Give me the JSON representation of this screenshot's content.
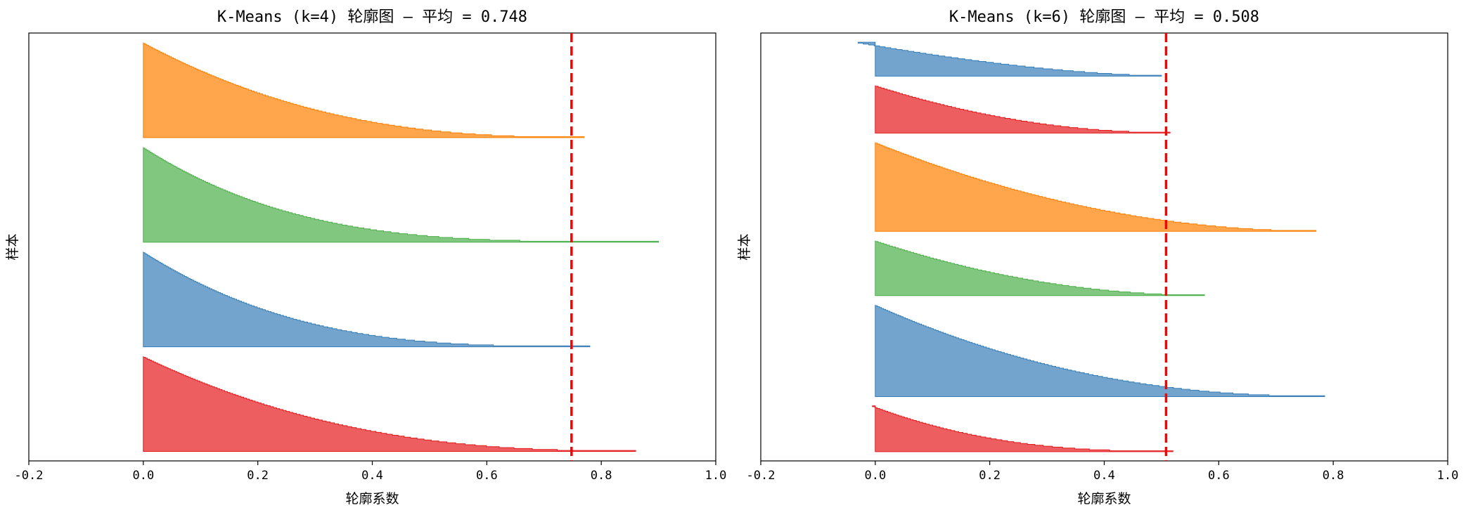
{
  "chart_data": [
    {
      "type": "area",
      "title": "K-Means (k=4) 轮廓图 — 平均 = 0.748",
      "xlabel": "轮廓系数",
      "ylabel": "样本",
      "xlim": [
        -0.2,
        1.0
      ],
      "xticks": [
        "-0.2",
        "0.0",
        "0.2",
        "0.4",
        "0.6",
        "0.8",
        "1.0"
      ],
      "yticks_shown": false,
      "grid": false,
      "mean_line": {
        "value": 0.748,
        "color": "#ff0000",
        "style": "dashed"
      },
      "clusters": [
        {
          "color": "#e41a1c",
          "size": 100,
          "max": 0.86,
          "min": 0.0,
          "shape": 2.5
        },
        {
          "color": "#377eb8",
          "size": 100,
          "max": 0.78,
          "min": 0.0,
          "shape": 3.0
        },
        {
          "color": "#4daf4a",
          "size": 100,
          "max": 0.9,
          "min": 0.0,
          "shape": 3.5
        },
        {
          "color": "#ff7f00",
          "size": 100,
          "max": 0.77,
          "min": 0.0,
          "shape": 2.5
        }
      ]
    },
    {
      "type": "area",
      "title": "K-Means (k=6) 轮廓图 — 平均 = 0.508",
      "xlabel": "轮廓系数",
      "ylabel": "样本",
      "xlim": [
        -0.2,
        1.0
      ],
      "xticks": [
        "-0.2",
        "0.0",
        "0.2",
        "0.4",
        "0.6",
        "0.8",
        "1.0"
      ],
      "yticks_shown": false,
      "grid": false,
      "mean_line": {
        "value": 0.508,
        "color": "#ff0000",
        "style": "dashed"
      },
      "clusters": [
        {
          "color": "#e41a1c",
          "size": 50,
          "max": 0.52,
          "min": -0.005,
          "shape": 2.5
        },
        {
          "color": "#377eb8",
          "size": 100,
          "max": 0.785,
          "min": 0.0,
          "shape": 2.2
        },
        {
          "color": "#4daf4a",
          "size": 60,
          "max": 0.575,
          "min": 0.0,
          "shape": 2.0
        },
        {
          "color": "#ff7f00",
          "size": 97,
          "max": 0.77,
          "min": 0.0,
          "shape": 2.0
        },
        {
          "color": "#e41a1c",
          "size": 52,
          "max": 0.515,
          "min": 0.0,
          "shape": 2.0
        },
        {
          "color": "#377eb8",
          "size": 37,
          "max": 0.5,
          "min": -0.03,
          "shape": 1.6
        }
      ]
    }
  ]
}
